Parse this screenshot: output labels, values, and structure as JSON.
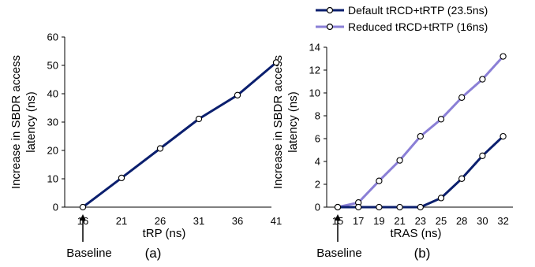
{
  "colors": {
    "default": "#0b1f6e",
    "reduced": "#8a7fd6",
    "axis": "#000000",
    "marker_fill": "#ffffff"
  },
  "chart_data": [
    {
      "type": "line",
      "panel_label": "(a)",
      "xlabel": "tRP (ns)",
      "ylabel": "Increase in SBDR access latency (ns)",
      "ylabel_lines": [
        "Increase in SBDR access",
        "latency (ns)"
      ],
      "categories": [
        "16",
        "21",
        "26",
        "31",
        "36",
        "41"
      ],
      "ylim": [
        0,
        60
      ],
      "yticks": [
        0,
        10,
        20,
        30,
        40,
        50,
        60
      ],
      "baseline_label": "Baseline",
      "baseline_category": "16",
      "grid": false,
      "series": [
        {
          "color_key": "default",
          "values": [
            0,
            10.3,
            20.7,
            31.1,
            39.5,
            51.0
          ]
        }
      ]
    },
    {
      "type": "line",
      "panel_label": "(b)",
      "xlabel": "tRAS (ns)",
      "ylabel": "Increase in SBDR access latency (ns)",
      "ylabel_lines": [
        "Increase in SBDR access",
        "latency (ns)"
      ],
      "categories": [
        "15",
        "17",
        "19",
        "21",
        "23",
        "25",
        "28",
        "30",
        "32"
      ],
      "ylim": [
        0,
        14
      ],
      "yticks": [
        0,
        2,
        4,
        6,
        8,
        10,
        12,
        14
      ],
      "baseline_label": "Baseline",
      "baseline_category": "15",
      "grid": false,
      "legend_position": "top",
      "series": [
        {
          "name": "Default tRCD+tRTP (23.5ns)",
          "color_key": "default",
          "values": [
            0,
            0,
            0,
            0,
            0,
            0.8,
            2.5,
            4.5,
            6.2
          ]
        },
        {
          "name": "Reduced tRCD+tRTP (16ns)",
          "color_key": "reduced",
          "values": [
            0,
            0.4,
            2.3,
            4.1,
            6.2,
            7.7,
            9.6,
            11.2,
            13.2
          ]
        }
      ]
    }
  ]
}
